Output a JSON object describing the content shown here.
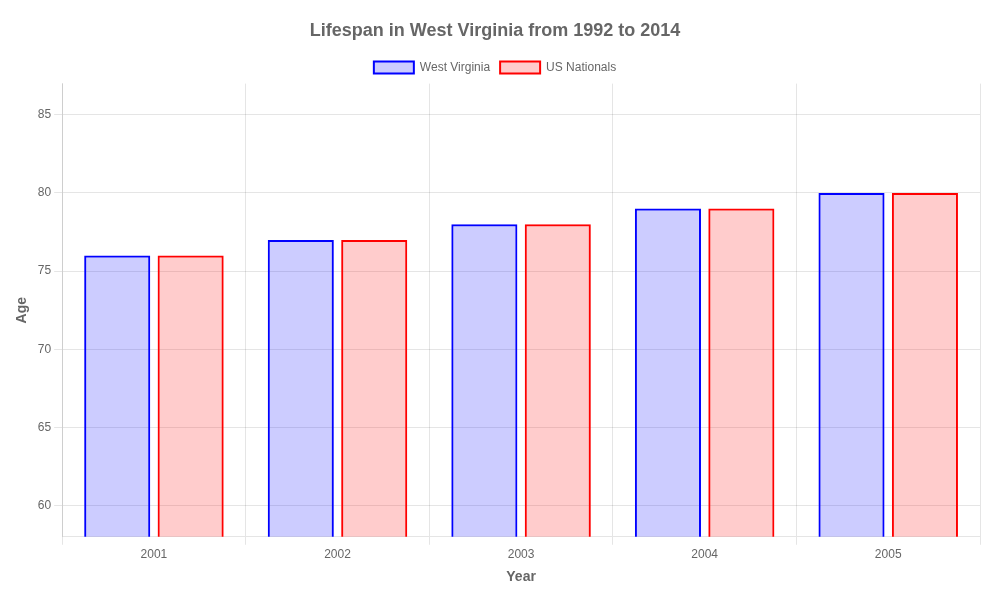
{
  "chart_data": {
    "type": "bar",
    "title": "Lifespan in West Virginia from 1992 to 2014",
    "x_label": "Year",
    "y_label": "Age",
    "categories": [
      "2001",
      "2002",
      "2003",
      "2004",
      "2005"
    ],
    "series": [
      {
        "name": "West Virginia",
        "color": "#0000ff",
        "values": [
          76,
          77,
          78,
          79,
          80
        ]
      },
      {
        "name": "US Nationals",
        "color": "#ff0000",
        "values": [
          76,
          77,
          78,
          79,
          80
        ]
      }
    ],
    "ylim": [
      58,
      87
    ],
    "yticks": [
      60,
      65,
      70,
      75,
      80,
      85
    ],
    "grid": true,
    "legend": "top"
  }
}
